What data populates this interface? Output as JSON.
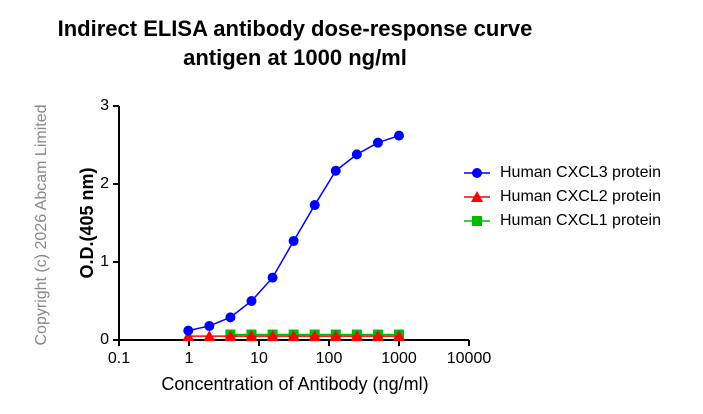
{
  "chart_data": {
    "type": "line",
    "title": [
      "Indirect ELISA antibody dose-response curve",
      "antigen at 1000 ng/ml"
    ],
    "watermark": "Copyright (c) 2026 Abcam Limited",
    "x_label": "Concentration of Antibody (ng/ml)",
    "y_label": "O.D.(405 nm)",
    "x": [
      0.9765625,
      1.953125,
      3.90625,
      7.8125,
      15.625,
      31.25,
      62.5,
      125,
      250,
      500,
      1000
    ],
    "xscale": "log",
    "xlim": [
      0.1,
      10000
    ],
    "xticks": [
      0.1,
      1,
      10,
      100,
      1000,
      10000
    ],
    "ylim": [
      0,
      3
    ],
    "yticks": [
      0,
      1,
      2,
      3
    ],
    "legend": "right",
    "series": [
      {
        "name": "Human CXCL3 protein",
        "color": "#0000ff",
        "marker": "circle",
        "values": [
          0.12,
          0.18,
          0.29,
          0.5,
          0.8,
          1.27,
          1.73,
          2.17,
          2.38,
          2.53,
          2.62
        ]
      },
      {
        "name": "Human CXCL2 protein",
        "color": "#ff0000",
        "marker": "triangle",
        "values": [
          0.05,
          0.05,
          0.05,
          0.05,
          0.05,
          0.05,
          0.05,
          0.05,
          0.05,
          0.05,
          0.05
        ]
      },
      {
        "name": "Human CXCL1 protein",
        "color": "#00bb00",
        "marker": "square",
        "values": [
          null,
          null,
          0.07,
          0.07,
          0.07,
          0.07,
          0.07,
          0.07,
          0.07,
          0.07,
          0.07
        ]
      }
    ]
  }
}
